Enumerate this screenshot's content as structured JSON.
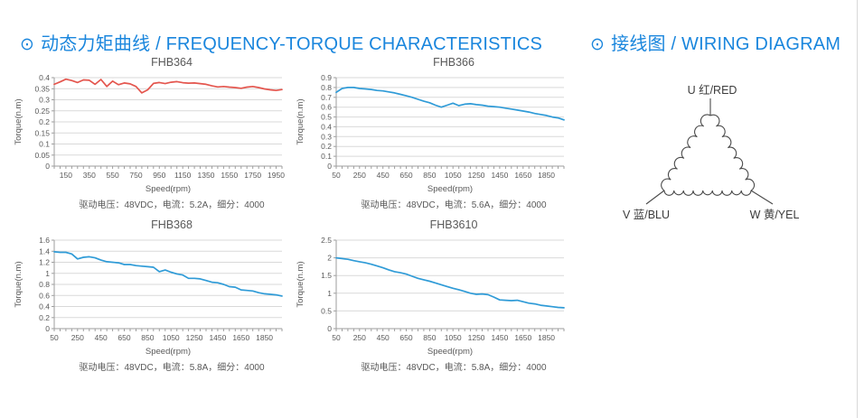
{
  "page": {
    "sections": {
      "left": {
        "bullet": "⊙",
        "title": "动态力矩曲线 / FREQUENCY-TORQUE CHARACTERISTICS"
      },
      "right": {
        "bullet": "⊙",
        "title": "接线图 / WIRING DIAGRAM"
      }
    }
  },
  "colors": {
    "accent": "#1a86dd",
    "curve_red": "#e4564e",
    "curve_blue": "#2f9bd7",
    "grid": "#d9d9d9",
    "axis": "#9e9e9e",
    "text_gray": "#595959",
    "diagram_line": "#4a4a4a"
  },
  "chart_data": [
    {
      "type": "line",
      "title": "FHB364",
      "xlabel": "Speed(rpm)",
      "ylabel": "Torque(n.m)",
      "caption": "驱动电压：48VDC，电流：5.2A，细分：4000",
      "color": "#e4564e",
      "xlim": [
        50,
        2000
      ],
      "ylim": [
        0,
        0.4
      ],
      "x_minor_step": 50,
      "yticks": [
        0,
        0.05,
        0.1,
        0.15,
        0.2,
        0.25,
        0.3,
        0.35,
        0.4
      ],
      "xticks": [
        150,
        350,
        550,
        750,
        950,
        1150,
        1350,
        1550,
        1750,
        1950
      ],
      "x": [
        50,
        100,
        150,
        200,
        250,
        300,
        350,
        400,
        450,
        500,
        550,
        600,
        650,
        700,
        750,
        800,
        850,
        900,
        950,
        1000,
        1050,
        1100,
        1150,
        1200,
        1250,
        1300,
        1350,
        1400,
        1450,
        1500,
        1550,
        1600,
        1650,
        1700,
        1750,
        1800,
        1850,
        1900,
        1950,
        2000
      ],
      "y": [
        0.37,
        0.381,
        0.393,
        0.387,
        0.378,
        0.39,
        0.388,
        0.37,
        0.392,
        0.36,
        0.384,
        0.368,
        0.376,
        0.372,
        0.36,
        0.331,
        0.345,
        0.374,
        0.378,
        0.373,
        0.379,
        0.382,
        0.377,
        0.375,
        0.376,
        0.373,
        0.37,
        0.363,
        0.358,
        0.36,
        0.357,
        0.355,
        0.352,
        0.357,
        0.36,
        0.355,
        0.349,
        0.345,
        0.342,
        0.346
      ]
    },
    {
      "type": "line",
      "title": "FHB366",
      "xlabel": "Speed(rpm)",
      "ylabel": "Torque(n.m)",
      "caption": "驱动电压：48VDC，电流：5.6A，细分：4000",
      "color": "#2f9bd7",
      "xlim": [
        50,
        2000
      ],
      "ylim": [
        0,
        0.9
      ],
      "x_minor_step": 50,
      "yticks": [
        0,
        0.1,
        0.2,
        0.3,
        0.4,
        0.5,
        0.6,
        0.7,
        0.8,
        0.9
      ],
      "xticks": [
        50,
        250,
        450,
        650,
        850,
        1050,
        1250,
        1450,
        1650,
        1850
      ],
      "x": [
        50,
        100,
        150,
        200,
        250,
        300,
        350,
        400,
        450,
        500,
        550,
        600,
        650,
        700,
        750,
        800,
        850,
        900,
        950,
        1000,
        1050,
        1100,
        1150,
        1200,
        1250,
        1300,
        1350,
        1400,
        1450,
        1500,
        1550,
        1600,
        1650,
        1700,
        1750,
        1800,
        1850,
        1900,
        1950,
        2000
      ],
      "y": [
        0.75,
        0.79,
        0.8,
        0.8,
        0.79,
        0.785,
        0.78,
        0.77,
        0.765,
        0.755,
        0.745,
        0.73,
        0.715,
        0.7,
        0.68,
        0.66,
        0.645,
        0.62,
        0.6,
        0.62,
        0.64,
        0.615,
        0.63,
        0.635,
        0.625,
        0.62,
        0.61,
        0.605,
        0.6,
        0.59,
        0.58,
        0.57,
        0.56,
        0.55,
        0.535,
        0.525,
        0.515,
        0.5,
        0.49,
        0.47
      ]
    },
    {
      "type": "line",
      "title": "FHB368",
      "xlabel": "Speed(rpm)",
      "ylabel": "Torque(n.m)",
      "caption": "驱动电压：48VDC，电流：5.8A，细分：4000",
      "color": "#2f9bd7",
      "xlim": [
        50,
        2000
      ],
      "ylim": [
        0,
        1.6
      ],
      "x_minor_step": 50,
      "yticks": [
        0,
        0.2,
        0.4,
        0.6,
        0.8,
        1.0,
        1.2,
        1.4,
        1.6
      ],
      "xticks": [
        50,
        250,
        450,
        650,
        850,
        1050,
        1250,
        1450,
        1650,
        1850
      ],
      "x": [
        50,
        100,
        150,
        200,
        250,
        300,
        350,
        400,
        450,
        500,
        550,
        600,
        650,
        700,
        750,
        800,
        850,
        900,
        950,
        1000,
        1050,
        1100,
        1150,
        1200,
        1250,
        1300,
        1350,
        1400,
        1450,
        1500,
        1550,
        1600,
        1650,
        1700,
        1750,
        1800,
        1850,
        1900,
        1950,
        2000
      ],
      "y": [
        1.39,
        1.38,
        1.38,
        1.35,
        1.26,
        1.29,
        1.3,
        1.28,
        1.24,
        1.21,
        1.2,
        1.19,
        1.16,
        1.16,
        1.14,
        1.13,
        1.12,
        1.11,
        1.03,
        1.06,
        1.02,
        0.99,
        0.97,
        0.91,
        0.91,
        0.9,
        0.87,
        0.84,
        0.83,
        0.8,
        0.76,
        0.75,
        0.7,
        0.69,
        0.68,
        0.65,
        0.63,
        0.62,
        0.61,
        0.59
      ]
    },
    {
      "type": "line",
      "title": "FHB3610",
      "xlabel": "Speed(rpm)",
      "ylabel": "Torque(n.m)",
      "caption": "驱动电压：48VDC，电流：5.8A，细分：4000",
      "color": "#2f9bd7",
      "xlim": [
        50,
        2000
      ],
      "ylim": [
        0,
        2.5
      ],
      "x_minor_step": 50,
      "yticks": [
        0,
        0.5,
        1.0,
        1.5,
        2.0,
        2.5
      ],
      "xticks": [
        50,
        250,
        450,
        650,
        850,
        1050,
        1250,
        1450,
        1650,
        1850
      ],
      "x": [
        50,
        100,
        150,
        200,
        250,
        300,
        350,
        400,
        450,
        500,
        550,
        600,
        650,
        700,
        750,
        800,
        850,
        900,
        950,
        1000,
        1050,
        1100,
        1150,
        1200,
        1250,
        1300,
        1350,
        1400,
        1450,
        1500,
        1550,
        1600,
        1650,
        1700,
        1750,
        1800,
        1850,
        1900,
        1950,
        2000
      ],
      "y": [
        2.0,
        1.98,
        1.96,
        1.92,
        1.89,
        1.86,
        1.82,
        1.77,
        1.72,
        1.66,
        1.61,
        1.58,
        1.54,
        1.48,
        1.42,
        1.38,
        1.34,
        1.29,
        1.24,
        1.19,
        1.14,
        1.1,
        1.05,
        1.0,
        0.97,
        0.98,
        0.96,
        0.89,
        0.81,
        0.8,
        0.79,
        0.8,
        0.76,
        0.72,
        0.7,
        0.66,
        0.64,
        0.62,
        0.6,
        0.59
      ]
    }
  ],
  "wiring": {
    "type": "delta-winding",
    "terminals": [
      {
        "id": "U",
        "label": "U 红/RED"
      },
      {
        "id": "V",
        "label": "V 蓝/BLU"
      },
      {
        "id": "W",
        "label": "W 黄/YEL"
      }
    ]
  }
}
